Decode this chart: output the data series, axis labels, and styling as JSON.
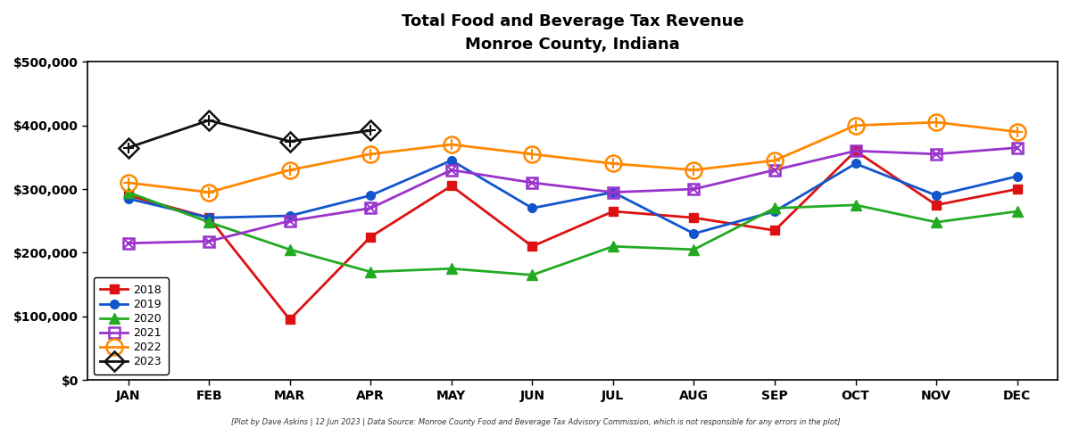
{
  "title_line1": "Total Food and Beverage Tax Revenue",
  "title_line2": "Monroe County, Indiana",
  "footnote": "[Plot by Dave Askins | 12 Jun 2023 | Data Source: Monroe County Food and Beverage Tax Advisory Commission, which is not responsible for any errors in the plot]",
  "months": [
    "JAN",
    "FEB",
    "MAR",
    "APR",
    "MAY",
    "JUN",
    "JUL",
    "AUG",
    "SEP",
    "OCT",
    "NOV",
    "DEC"
  ],
  "series": {
    "2018": {
      "color": "#dd1111",
      "marker": "s",
      "marker_size": 7,
      "linewidth": 2.0,
      "open": false,
      "values": [
        290000,
        255000,
        95000,
        225000,
        305000,
        210000,
        265000,
        255000,
        235000,
        360000,
        275000,
        300000
      ]
    },
    "2019": {
      "color": "#1155cc",
      "marker": "o",
      "marker_size": 7,
      "linewidth": 2.0,
      "open": false,
      "values": [
        285000,
        255000,
        258000,
        290000,
        345000,
        270000,
        295000,
        230000,
        265000,
        340000,
        290000,
        320000
      ]
    },
    "2020": {
      "color": "#22aa22",
      "marker": "^",
      "marker_size": 8,
      "linewidth": 2.0,
      "open": false,
      "values": [
        295000,
        248000,
        205000,
        170000,
        175000,
        165000,
        210000,
        205000,
        270000,
        275000,
        248000,
        265000
      ]
    },
    "2021": {
      "color": "#9933cc",
      "marker": "s",
      "marker_size": 9,
      "linewidth": 2.0,
      "open": true,
      "inner_marker": "x",
      "inner_size": 7,
      "values": [
        215000,
        218000,
        250000,
        270000,
        330000,
        310000,
        295000,
        300000,
        330000,
        360000,
        355000,
        365000
      ]
    },
    "2022": {
      "color": "#ff8800",
      "marker": "o",
      "marker_size": 13,
      "linewidth": 2.0,
      "open": true,
      "inner_marker": "+",
      "inner_size": 9,
      "values": [
        310000,
        295000,
        330000,
        355000,
        370000,
        355000,
        340000,
        330000,
        345000,
        400000,
        405000,
        390000
      ]
    },
    "2023": {
      "color": "#111111",
      "marker": "D",
      "marker_size": 11,
      "linewidth": 2.0,
      "open": true,
      "inner_marker": "+",
      "inner_size": 8,
      "values": [
        365000,
        408000,
        375000,
        392000,
        null,
        null,
        null,
        null,
        null,
        null,
        null,
        null
      ]
    }
  },
  "ylim": [
    0,
    500000
  ],
  "yticks": [
    0,
    100000,
    200000,
    300000,
    400000,
    500000
  ],
  "ytick_labels": [
    "$0",
    "$100,000",
    "$200,000",
    "$300,000",
    "$400,000",
    "$500,000"
  ],
  "legend_order": [
    "2018",
    "2019",
    "2020",
    "2021",
    "2022",
    "2023"
  ],
  "bg_color": "#ffffff",
  "plot_bg_color": "#ffffff"
}
